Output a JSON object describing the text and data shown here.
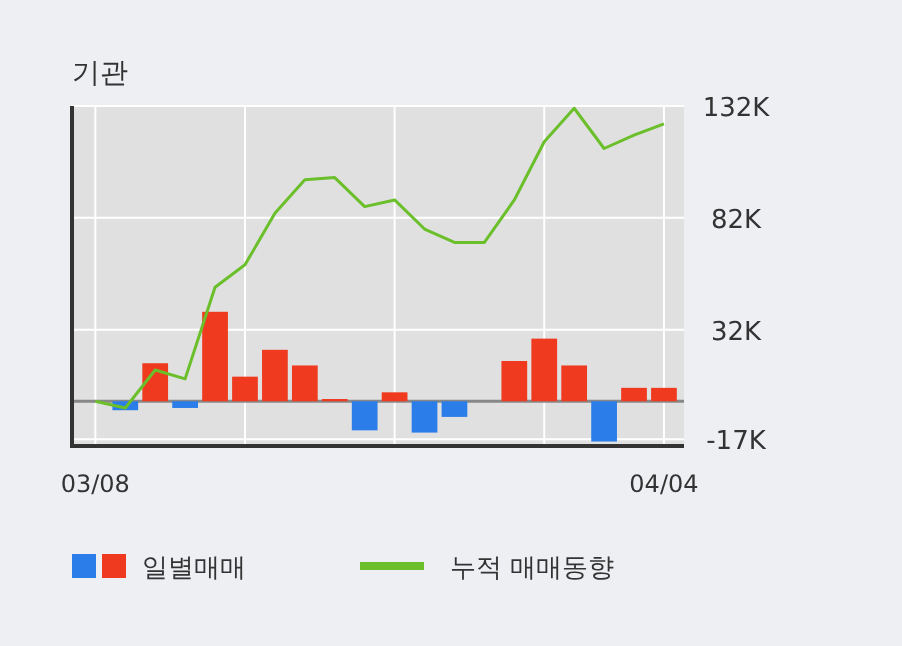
{
  "chart_data": {
    "type": "bar",
    "title": "기관",
    "categories": [
      "03/08",
      null,
      null,
      null,
      null,
      null,
      null,
      null,
      null,
      null,
      null,
      null,
      null,
      null,
      null,
      null,
      null,
      null,
      null,
      "04/04"
    ],
    "series": [
      {
        "name": "일별매매",
        "colors": [
          "#f03a1f",
          "#2b7de9",
          "#f03a1f",
          "#2b7de9",
          "#f03a1f",
          "#f03a1f",
          "#f03a1f",
          "#f03a1f",
          "#f03a1f",
          "#2b7de9",
          "#f03a1f",
          "#2b7de9",
          "#2b7de9",
          "#f03a1f",
          "#f03a1f",
          "#f03a1f",
          "#f03a1f",
          "#2b7de9",
          "#f03a1f",
          "#f03a1f"
        ],
        "values": [
          0,
          -4,
          17,
          -3,
          40,
          11,
          23,
          16,
          1,
          -13,
          4,
          -14,
          -7,
          0,
          18,
          28,
          16,
          -18,
          6,
          6
        ]
      },
      {
        "name": "누적 매매동향",
        "type": "line",
        "color": "#6abf2a",
        "values": [
          0,
          -3,
          14,
          10,
          51,
          61,
          84,
          99,
          100,
          87,
          90,
          77,
          71,
          71,
          90,
          116,
          131,
          113,
          119,
          124
        ]
      }
    ],
    "ylim": [
      -20,
      132
    ],
    "yticks": [
      {
        "value": -17,
        "label": "-17K"
      },
      {
        "value": 32,
        "label": "32K"
      },
      {
        "value": 82,
        "label": "82K"
      },
      {
        "value": 132,
        "label": "132K"
      }
    ],
    "grid": true,
    "legend": "bottom",
    "marker": "none",
    "line_style": "solid"
  }
}
